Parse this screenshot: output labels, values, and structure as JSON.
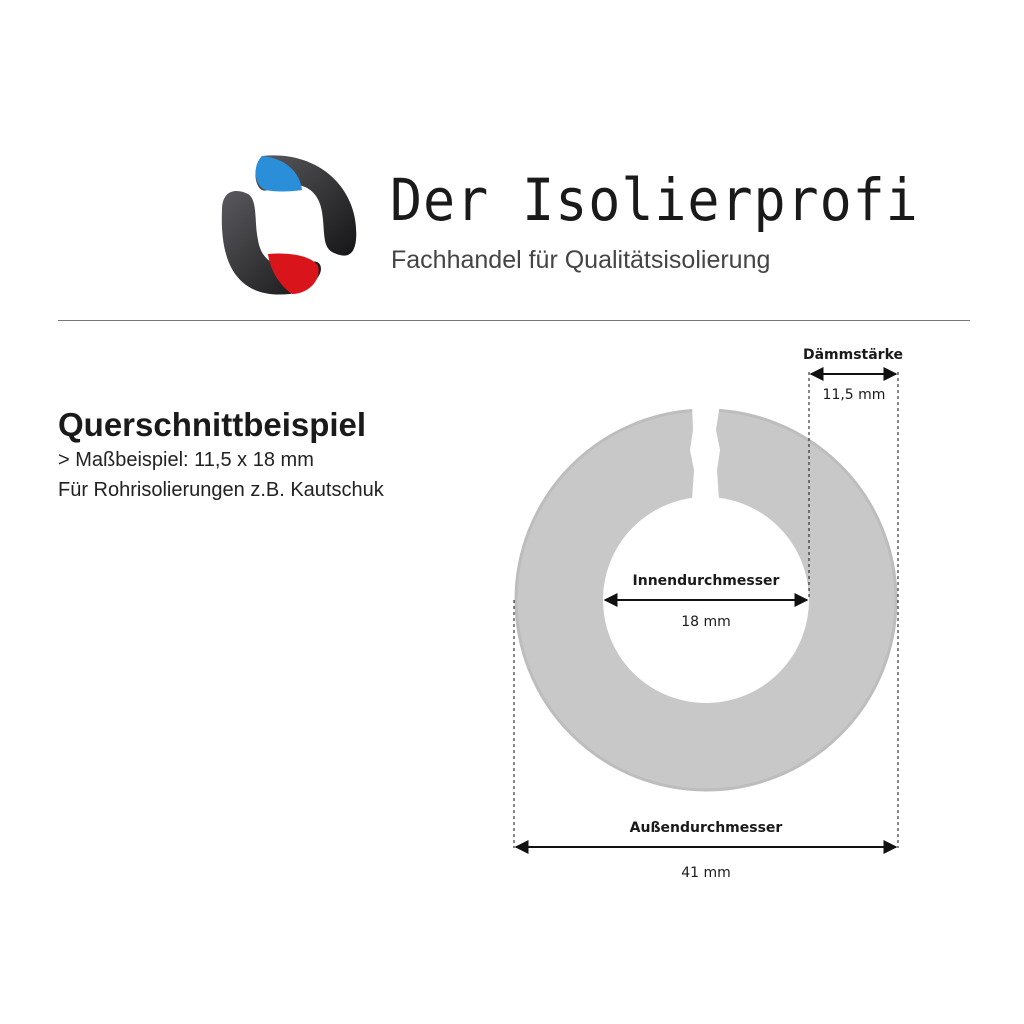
{
  "brand": {
    "name": "Der Isolierprofi",
    "tagline": "Fachhandel für Qualitätsisolierung",
    "colors": {
      "blue": "#2a8fd8",
      "red": "#d9141b",
      "dark": "#2a2a2c"
    }
  },
  "section": {
    "title": "Querschnittbeispiel",
    "line1": "> Maßbeispiel: 11,5 x 18 mm",
    "line2": "Für Rohrisolierungen z.B. Kautschuk"
  },
  "diagram": {
    "ring_color": "#c8c8c8",
    "thickness": {
      "label": "Dämmstärke",
      "value": "11,5 mm"
    },
    "inner": {
      "label": "Innendurchmesser",
      "value": "18 mm"
    },
    "outer": {
      "label": "Außendurchmesser",
      "value": "41 mm"
    }
  }
}
